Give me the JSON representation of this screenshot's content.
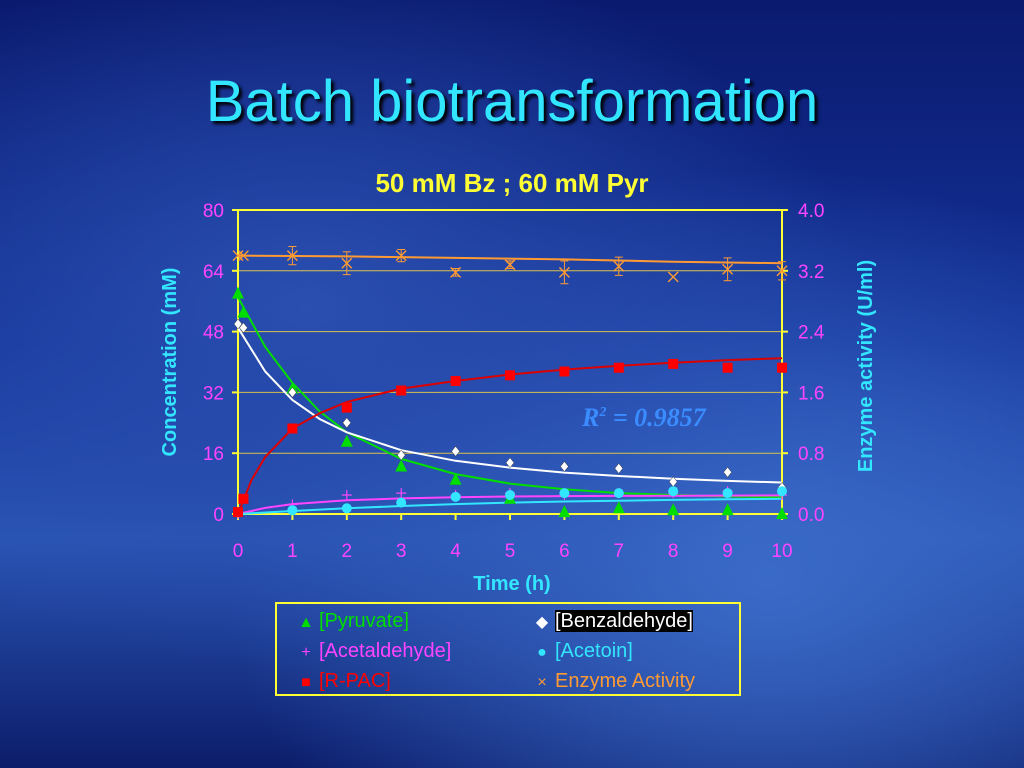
{
  "page": {
    "title": "Batch biotransformation"
  },
  "chart_data": {
    "type": "scatter",
    "title": "50 mM Bz ; 60 mM Pyr",
    "xlabel": "Time (h)",
    "ylabel": "Concentration (mM)",
    "y2label": "Enzyme activity (U/ml)",
    "xlim": [
      0,
      10
    ],
    "ylim": [
      0,
      80
    ],
    "y2lim": [
      0.0,
      4.0
    ],
    "x_ticks": [
      "0",
      "1",
      "2",
      "3",
      "4",
      "5",
      "6",
      "7",
      "8",
      "9",
      "10"
    ],
    "y_ticks": [
      "0",
      "16",
      "32",
      "48",
      "64",
      "80"
    ],
    "y2_ticks": [
      "0.0",
      "0.8",
      "1.6",
      "2.4",
      "3.2",
      "4.0"
    ],
    "grid": true,
    "legend_position": "bottom",
    "annotation": {
      "r2_label": "R",
      "r2_sup": "2",
      "r2_value": " = 0.9857"
    },
    "series": [
      {
        "name": "[Pyruvate]",
        "marker": "triangle",
        "color": "#00dd00",
        "x": [
          0,
          0.1,
          1,
          2,
          3,
          4,
          5,
          6,
          7,
          8,
          9,
          10
        ],
        "y": [
          58,
          53,
          33,
          19,
          12.5,
          9,
          4,
          0.5,
          1.5,
          1,
          1,
          0
        ]
      },
      {
        "name": "[Benzaldehyde]",
        "marker": "diamond",
        "color": "#ffffff",
        "x": [
          0,
          0.1,
          1,
          2,
          3,
          4,
          5,
          6,
          7,
          8,
          9,
          10
        ],
        "y": [
          50,
          49,
          32,
          24,
          15.5,
          16.5,
          13.5,
          12.5,
          12,
          8.5,
          11,
          7
        ]
      },
      {
        "name": "[Acetaldehyde]",
        "marker": "plus",
        "color": "#ff44ff",
        "x": [
          0,
          1,
          2,
          3,
          4,
          5,
          6,
          7,
          8,
          9,
          10
        ],
        "y": [
          0,
          2.5,
          5,
          5.5,
          5,
          5.5,
          5,
          5.5,
          5.5,
          6,
          5
        ]
      },
      {
        "name": "[Acetoin]",
        "marker": "circle",
        "color": "#33e6ff",
        "x": [
          0,
          1,
          2,
          3,
          4,
          5,
          6,
          7,
          8,
          9,
          10
        ],
        "y": [
          0.5,
          1,
          1.5,
          3,
          4.5,
          5,
          5.5,
          5.5,
          6,
          5.5,
          6
        ]
      },
      {
        "name": "[R-PAC]",
        "marker": "square",
        "color": "#ff0000",
        "x": [
          0,
          0.1,
          1,
          2,
          3,
          4,
          5,
          6,
          7,
          8,
          9,
          10
        ],
        "y": [
          0.5,
          4,
          22.5,
          28,
          32.5,
          35,
          36.5,
          37.5,
          38.5,
          39.5,
          38.5,
          38.5
        ]
      },
      {
        "name": "Enzyme Activity",
        "marker": "x",
        "color": "#ff9a33",
        "axis": "right",
        "x": [
          0,
          0.1,
          1,
          2,
          3,
          4,
          5,
          6,
          7,
          8,
          9,
          10
        ],
        "y": [
          3.4,
          3.4,
          3.4,
          3.3,
          3.4,
          3.18,
          3.28,
          3.18,
          3.26,
          3.12,
          3.22,
          3.2
        ],
        "error": [
          0,
          0,
          0.12,
          0.15,
          0.08,
          0.05,
          0.05,
          0.15,
          0.12,
          0,
          0.15,
          0.12
        ]
      }
    ],
    "fit_curves": [
      {
        "color": "#00dd00",
        "x": [
          0,
          0.5,
          1,
          1.5,
          2,
          3,
          4,
          5,
          6,
          7,
          8,
          9,
          10
        ],
        "y": [
          57,
          44,
          34.5,
          27,
          21.5,
          14.5,
          10.5,
          8,
          6.5,
          5.5,
          5,
          4.6,
          4.4
        ]
      },
      {
        "color": "#ffffff",
        "x": [
          0,
          0.5,
          1,
          1.5,
          2,
          3,
          4,
          5,
          6,
          7,
          8,
          9,
          10
        ],
        "y": [
          49,
          37.5,
          30,
          25,
          21.5,
          16.8,
          14,
          12.2,
          10.9,
          10,
          9.3,
          8.7,
          8.3
        ]
      },
      {
        "color": "#ff44ff",
        "x": [
          0,
          0.5,
          1,
          2,
          3,
          4,
          5,
          6,
          7,
          8,
          9,
          10
        ],
        "y": [
          0,
          1.6,
          2.6,
          3.6,
          4.1,
          4.4,
          4.6,
          4.7,
          4.75,
          4.8,
          4.85,
          4.9
        ]
      },
      {
        "color": "#33e6ff",
        "x": [
          0,
          1,
          2,
          3,
          4,
          5,
          6,
          7,
          8,
          9,
          10
        ],
        "y": [
          0,
          0.8,
          1.5,
          2.1,
          2.6,
          3,
          3.3,
          3.5,
          3.7,
          3.9,
          4
        ]
      },
      {
        "color": "#dd0000",
        "x": [
          0,
          0.25,
          0.5,
          1,
          1.5,
          2,
          3,
          4,
          5,
          6,
          7,
          8,
          9,
          10
        ],
        "y": [
          0,
          9,
          15,
          22.5,
          26.5,
          29.5,
          33,
          35,
          36.7,
          38,
          39,
          39.8,
          40.5,
          41
        ]
      },
      {
        "color": "#ff9a33",
        "axis": "right",
        "x": [
          0,
          2,
          4,
          6,
          8,
          10
        ],
        "y": [
          3.4,
          3.39,
          3.37,
          3.35,
          3.32,
          3.3
        ]
      }
    ]
  }
}
